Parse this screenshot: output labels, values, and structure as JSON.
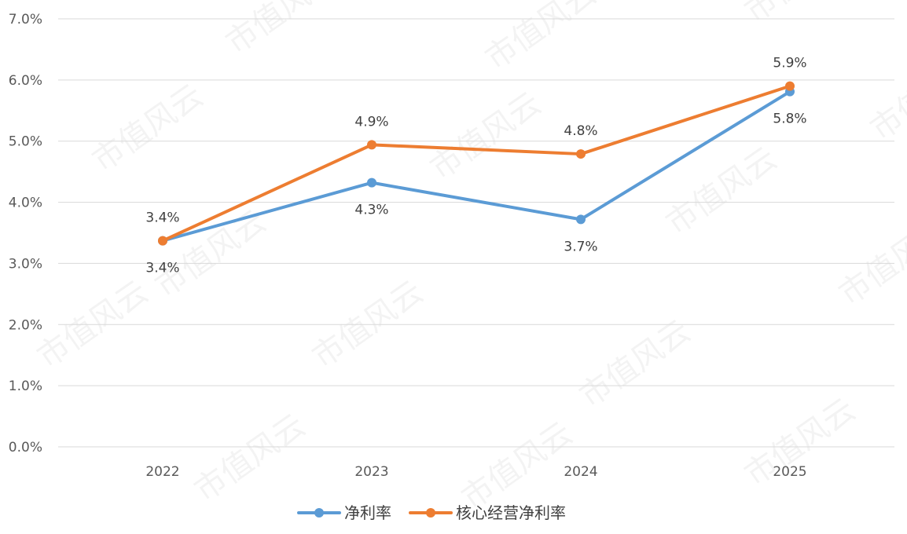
{
  "chart_data": {
    "type": "line",
    "title": "",
    "xlabel": "",
    "ylabel": "",
    "categories": [
      "2022",
      "2023",
      "2024",
      "2025"
    ],
    "ylim": [
      0,
      7
    ],
    "ytick_labels": [
      "0.0%",
      "1.0%",
      "2.0%",
      "3.0%",
      "4.0%",
      "5.0%",
      "6.0%",
      "7.0%"
    ],
    "series": [
      {
        "name": "净利率",
        "color": "#5b9bd5",
        "values": [
          3.37,
          4.32,
          3.72,
          5.81
        ],
        "labels": [
          "3.4%",
          "4.3%",
          "3.7%",
          "5.8%"
        ]
      },
      {
        "name": "核心经营净利率",
        "color": "#ed7d31",
        "values": [
          3.37,
          4.94,
          4.79,
          5.9
        ],
        "labels": [
          "3.4%",
          "4.9%",
          "4.8%",
          "5.9%"
        ]
      }
    ],
    "grid": true,
    "legend_position": "bottom"
  },
  "watermark": "市值风云"
}
